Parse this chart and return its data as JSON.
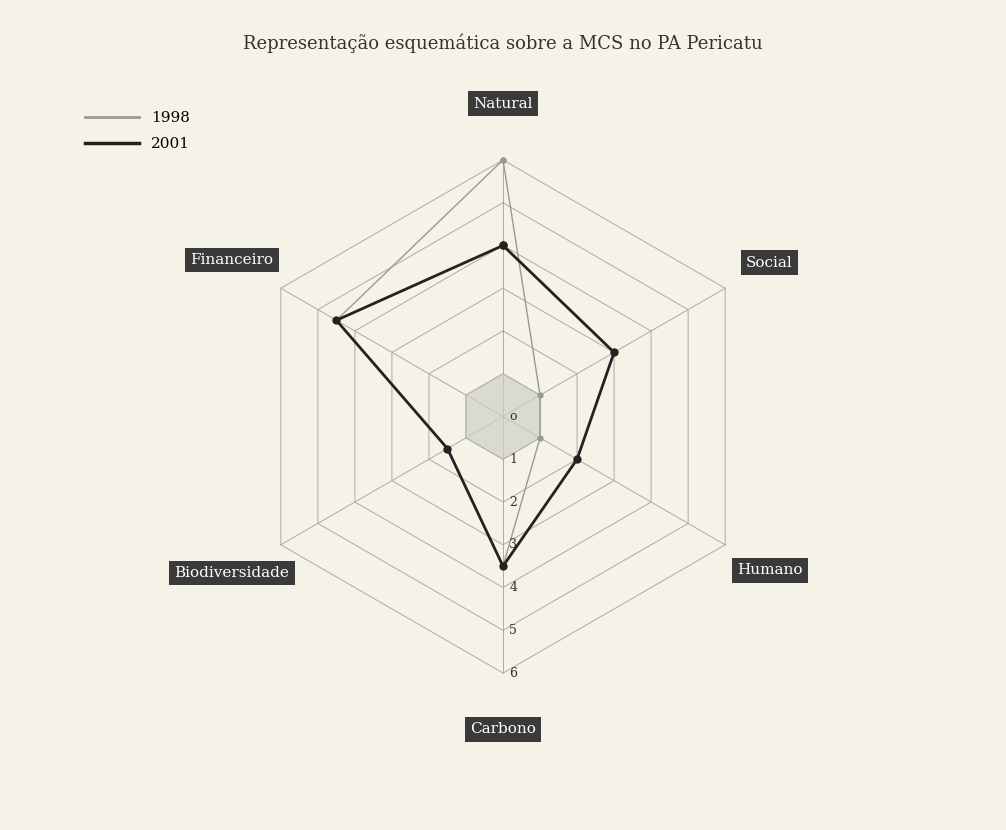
{
  "title": "Representação esquemática sobre a MCS no PA Pericatu",
  "categories": [
    "Natural",
    "Social",
    "Humano",
    "Carbono",
    "Biodiversidade",
    "Financeiro"
  ],
  "scale_max": 6,
  "scale_ticks": [
    0,
    1,
    2,
    3,
    4,
    5,
    6
  ],
  "data_1998": [
    6.0,
    1.0,
    1.0,
    3.5,
    1.5,
    4.5
  ],
  "data_2001": [
    4.0,
    3.0,
    2.0,
    3.5,
    1.5,
    4.5
  ],
  "color_1998": "#999999",
  "color_2001": "#222222",
  "bg_color": "#f5f2e8",
  "label_bg_color": "#3a3a3a",
  "label_text_color": "#ffffff",
  "legend_1998": "1998",
  "legend_2001": "2001",
  "title_fontsize": 13,
  "label_fontsize": 11,
  "tick_fontsize": 9
}
